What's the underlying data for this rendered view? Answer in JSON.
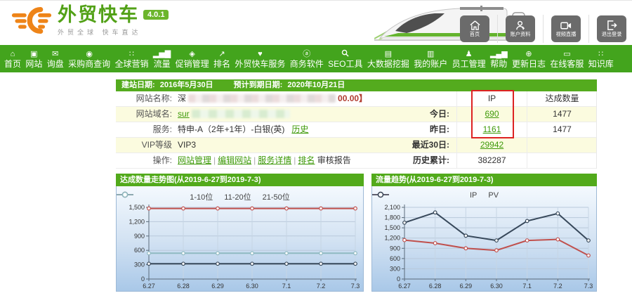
{
  "header": {
    "logo": {
      "title": "外贸快车",
      "version_badge": "4.0.1",
      "tagline": "外贸全球 快车直达"
    },
    "buttons": [
      {
        "key": "home",
        "icon": "home-icon",
        "label": "首页"
      },
      {
        "key": "account",
        "icon": "account-icon",
        "label": "账户资料"
      },
      {
        "key": "video-live",
        "icon": "video-icon",
        "label": "视频直播"
      },
      {
        "key": "logout",
        "icon": "logout-icon",
        "label": "退出登录"
      }
    ]
  },
  "nav": {
    "accent_color": "#43a41d",
    "items": [
      {
        "key": "home",
        "icon": "home-icon",
        "glyph": "⌂",
        "label": "首页"
      },
      {
        "key": "website",
        "icon": "website-icon",
        "glyph": "▣",
        "label": "网站"
      },
      {
        "key": "inquiry",
        "icon": "inquiry-mail-icon",
        "glyph": "✉",
        "label": "询盘"
      },
      {
        "key": "buyer-search",
        "icon": "buyer-search-icon",
        "glyph": "◉",
        "label": "采购商查询"
      },
      {
        "key": "global-marketing",
        "icon": "global-marketing-icon",
        "glyph": "∷",
        "label": "全球营销"
      },
      {
        "key": "traffic",
        "icon": "traffic-bars-icon",
        "glyph": "▂▅▇",
        "label": "流量"
      },
      {
        "key": "promotion",
        "icon": "promotion-tag-icon",
        "glyph": "◈",
        "label": "促销管理"
      },
      {
        "key": "ranking",
        "icon": "ranking-trend-icon",
        "glyph": "↗",
        "label": "排名"
      },
      {
        "key": "services",
        "icon": "service-heart-icon",
        "glyph": "♥",
        "label": "外贸快车服务"
      },
      {
        "key": "business-software",
        "icon": "business-software-icon",
        "glyph": "ⓐ",
        "label": "商务软件"
      },
      {
        "key": "seo-tools",
        "icon": "search-icon",
        "glyph": "svg-magnifier",
        "label": "SEO工具"
      },
      {
        "key": "big-data",
        "icon": "bigdata-briefcase-icon",
        "glyph": "▤",
        "label": "大数据挖掘"
      },
      {
        "key": "my-account",
        "icon": "my-account-icon",
        "glyph": "▥",
        "label": "我的账户"
      },
      {
        "key": "staff",
        "icon": "staff-people-icon",
        "glyph": "♟",
        "label": "员工管理"
      },
      {
        "key": "help",
        "icon": "help-bars-icon",
        "glyph": "▂▄▆",
        "label": "帮助"
      },
      {
        "key": "changelog",
        "icon": "update-plus-icon",
        "glyph": "⊕",
        "label": "更新日志"
      },
      {
        "key": "online-support",
        "icon": "online-service-icon",
        "glyph": "▭",
        "label": "在线客服"
      },
      {
        "key": "knowledge-base",
        "icon": "knowledge-grid-icon",
        "glyph": "∷",
        "label": "知识库"
      }
    ]
  },
  "site_panel": {
    "banner": {
      "build_date_label": "建站日期:",
      "build_date": "2016年5月30日",
      "expire_label": "预计到期日期:",
      "expire_date": "2020年10月21日"
    },
    "info": {
      "site_name_label": "网站名称:",
      "site_name_prefix": "深",
      "site_name_suffix": "00.00】",
      "domain_label": "网站域名:",
      "domain_prefix": "sur",
      "service_label": "服务:",
      "service_value": "特申-A（2年+1年）-白银(英)",
      "service_history_link": "历史",
      "vip_label": "VIP等级",
      "vip_value": "VIP3",
      "action_label": "操作:",
      "action_links": [
        "网站管理",
        "编辑网站",
        "服务详情",
        "排名"
      ],
      "action_extra": "审核报告"
    },
    "stats": {
      "col_ip": "IP",
      "col_total": "达成数量",
      "highlight_box_color": "#dd2222",
      "rows": [
        {
          "label": "今日:",
          "ip": "690",
          "link": true,
          "total": "1477"
        },
        {
          "label": "昨日:",
          "ip": "1161",
          "link": true,
          "total": "1477"
        },
        {
          "label": "最近30日:",
          "ip": "29942",
          "link": true,
          "total": ""
        },
        {
          "label": "历史累计:",
          "ip": "382287",
          "link": false,
          "total": ""
        }
      ]
    }
  },
  "chart_data": [
    {
      "type": "line",
      "title": "达成数量走势图(从2019-6-27到2019-7-3)",
      "categories": [
        "6.27",
        "6.28",
        "6.29",
        "6.30",
        "7.1",
        "7.2",
        "7.3"
      ],
      "series": [
        {
          "name": "1-10位",
          "color": "#c0504d",
          "values": [
            1477,
            1477,
            1477,
            1477,
            1477,
            1477,
            1477
          ]
        },
        {
          "name": "11-20位",
          "color": "#37485a",
          "values": [
            320,
            320,
            320,
            320,
            320,
            320,
            320
          ]
        },
        {
          "name": "21-50位",
          "color": "#8fbac1",
          "values": [
            540,
            540,
            540,
            540,
            540,
            540,
            540
          ]
        }
      ],
      "ylim": [
        0,
        1500
      ],
      "yticks": [
        0,
        300,
        600,
        900,
        1200,
        1500
      ],
      "grid": true,
      "legend_position": "top"
    },
    {
      "type": "line",
      "title": "流量趋势(从2019-6-27到2019-7-3)",
      "categories": [
        "6.27",
        "6.28",
        "6.29",
        "6.30",
        "7.1",
        "7.2",
        "7.3"
      ],
      "series": [
        {
          "name": "IP",
          "color": "#c0504d",
          "values": [
            1140,
            1050,
            900,
            840,
            1130,
            1161,
            690
          ]
        },
        {
          "name": "PV",
          "color": "#37485a",
          "values": [
            1650,
            1950,
            1270,
            1130,
            1700,
            1920,
            1130
          ]
        }
      ],
      "ylim": [
        0,
        2100
      ],
      "yticks": [
        0,
        300,
        600,
        900,
        1200,
        1500,
        1800,
        2100
      ],
      "grid": true,
      "legend_position": "top"
    }
  ]
}
